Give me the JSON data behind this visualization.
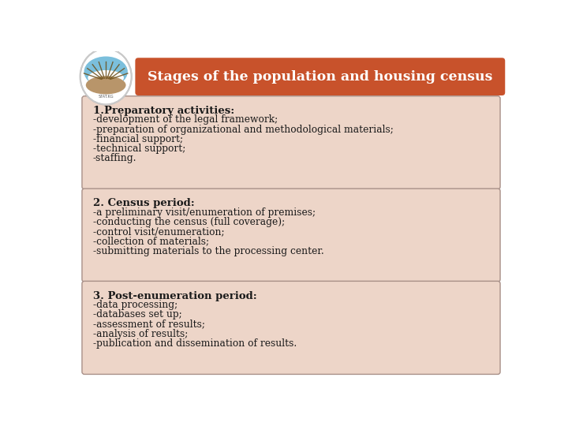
{
  "title": "Stages of the population and housing census",
  "title_bg_color": "#C8522B",
  "title_text_color": "#FFFFFF",
  "page_bg_color": "#FFFFFF",
  "outer_border_color": "#BBBBBB",
  "box_bg_color": "#EDD5C8",
  "box_border_color": "#A89088",
  "text_color": "#1A1A1A",
  "sections": [
    {
      "heading": "1.Preparatory activities:",
      "lines": [
        "-development of the legal framework;",
        "-preparation of organizational and methodological materials;",
        "-financial support;",
        "-technical support;",
        "-staffing."
      ]
    },
    {
      "heading": "2. Census period:",
      "lines": [
        "-a preliminary visit/enumeration of premises;",
        "-conducting the census (full coverage);",
        "-control visit/enumeration;",
        "-collection of materials;",
        "-submitting materials to the processing center."
      ]
    },
    {
      "heading": "3. Post-enumeration period:",
      "lines": [
        "-data processing;",
        "-databases set up;",
        "-assessment of results;",
        "-analysis of results;",
        "-publication and dissemination of results."
      ]
    }
  ],
  "font_size_heading": 9.5,
  "font_size_body": 8.8,
  "font_size_title": 12.5
}
